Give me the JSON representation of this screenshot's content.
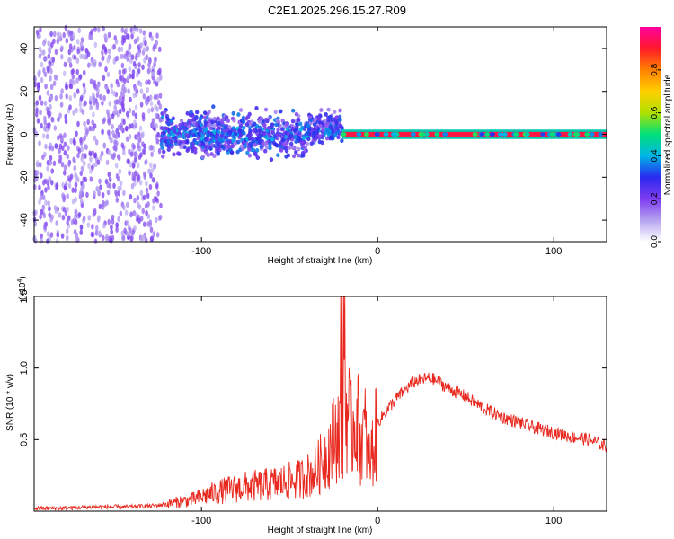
{
  "title": "C2E1.2025.296.15.27.R09",
  "colors": {
    "signal": "#e8281e",
    "frame": "#000000",
    "scatter": "#7a1ee8",
    "colormap": [
      "#ffffff",
      "#b6a3f0",
      "#7d3bf0",
      "#2a2af0",
      "#00b6e6",
      "#00e07a",
      "#b0e000",
      "#ffd000",
      "#ff8000",
      "#ff1a2a",
      "#ff00a0"
    ]
  },
  "chart_data": [
    {
      "type": "heatmap",
      "xlabel": "Height of straight line (km)",
      "ylabel": "Frequency (Hz)",
      "xlim": [
        -195,
        130
      ],
      "ylim": [
        -50,
        50
      ],
      "xticks": [
        "-100",
        "0",
        "100"
      ],
      "xtick_values": [
        -100,
        0,
        100
      ],
      "yticks": [
        "-40",
        "-20",
        "0",
        "20",
        "40"
      ],
      "ytick_values": [
        -40,
        -20,
        0,
        20,
        40
      ],
      "colorbar": {
        "label": "Normalized spectral amplitude",
        "ticks": [
          "0.0",
          "0.2",
          "0.4",
          "0.6",
          "0.8"
        ],
        "tick_values": [
          0.0,
          0.2,
          0.4,
          0.6,
          0.8
        ],
        "range": [
          0,
          1
        ]
      },
      "regions": [
        {
          "x": [
            -195,
            -123
          ],
          "freq_spread": [
            -50,
            50
          ],
          "amplitude": "low (noise, ~0.05-0.15)"
        },
        {
          "x": [
            -123,
            -20
          ],
          "freq_spread": [
            -15,
            15
          ],
          "amplitude": "0.1-0.4"
        },
        {
          "x": [
            -20,
            130
          ],
          "freq_spread": [
            -2,
            2
          ],
          "amplitude": "0.8-1.0 (carrier at 0 Hz)"
        }
      ]
    },
    {
      "type": "line",
      "xlabel": "Height of straight line (km)",
      "ylabel": "SNR (10 * v/v)",
      "yscale_label": "(x10",
      "yscale_exp": "4",
      "xlim": [
        -195,
        130
      ],
      "ylim": [
        0,
        1.5
      ],
      "xticks": [
        "-100",
        "0",
        "100"
      ],
      "xtick_values": [
        -100,
        0,
        100
      ],
      "yticks": [
        "0.5",
        "1.0",
        "1.5"
      ],
      "ytick_values": [
        0.5,
        1.0,
        1.5
      ],
      "series": [
        {
          "x": [
            -195,
            -180,
            -160,
            -140,
            -125,
            -115,
            -105,
            -95,
            -85,
            -75,
            -65,
            -55,
            -45,
            -35,
            -30,
            -25,
            -20,
            -17,
            -15,
            -12,
            -10,
            -7,
            -5,
            -2,
            0,
            5,
            10,
            15,
            20,
            25,
            30,
            35,
            40,
            50,
            60,
            70,
            80,
            90,
            100,
            110,
            120,
            130
          ],
          "y": [
            0.02,
            0.02,
            0.03,
            0.03,
            0.04,
            0.06,
            0.08,
            0.12,
            0.15,
            0.17,
            0.18,
            0.2,
            0.22,
            0.28,
            0.38,
            0.5,
            0.62,
            0.72,
            0.55,
            0.7,
            0.5,
            0.55,
            0.35,
            0.45,
            0.62,
            0.7,
            0.78,
            0.84,
            0.9,
            0.92,
            0.93,
            0.9,
            0.86,
            0.8,
            0.72,
            0.66,
            0.62,
            0.58,
            0.55,
            0.52,
            0.5,
            0.45
          ]
        }
      ]
    }
  ]
}
